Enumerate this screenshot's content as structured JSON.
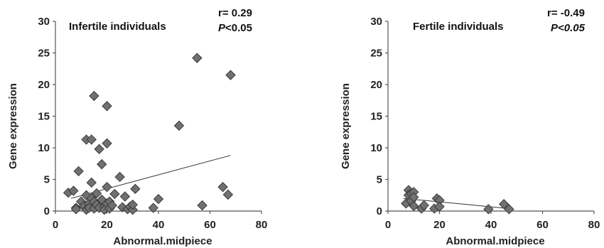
{
  "chart_data": [
    {
      "type": "scatter",
      "label": "Infertile individuals",
      "stat_r": "r= 0.29",
      "stat_p_prefix": "P",
      "stat_p_suffix": "<0.05",
      "stat_p_suffix_italic": false,
      "xlabel": "Abnormal.midpiece",
      "ylabel": "Gene expression",
      "xlim": [
        0,
        80
      ],
      "ylim": [
        0,
        30
      ],
      "xticks": [
        "0",
        "20",
        "40",
        "60",
        "80"
      ],
      "yticks": [
        "0",
        "5",
        "10",
        "15",
        "20",
        "25",
        "30"
      ],
      "trendline": [
        [
          6,
          2.0
        ],
        [
          68,
          8.8
        ]
      ],
      "points": [
        [
          5,
          2.9
        ],
        [
          7,
          3.2
        ],
        [
          8,
          0.5
        ],
        [
          8,
          0.3
        ],
        [
          9,
          6.3
        ],
        [
          10,
          1.5
        ],
        [
          11,
          0.8
        ],
        [
          12,
          11.3
        ],
        [
          12,
          2.5
        ],
        [
          12,
          0.2
        ],
        [
          13,
          1.2
        ],
        [
          13,
          0.5
        ],
        [
          14,
          11.3
        ],
        [
          14,
          4.5
        ],
        [
          14,
          2.0
        ],
        [
          15,
          18.2
        ],
        [
          15,
          1.5
        ],
        [
          15,
          0.4
        ],
        [
          16,
          2.8
        ],
        [
          16,
          1.0
        ],
        [
          17,
          9.8
        ],
        [
          17,
          0.5
        ],
        [
          18,
          7.4
        ],
        [
          18,
          1.8
        ],
        [
          19,
          0.7
        ],
        [
          19,
          0.2
        ],
        [
          20,
          16.6
        ],
        [
          20,
          10.7
        ],
        [
          20,
          3.8
        ],
        [
          20,
          1.2
        ],
        [
          21,
          1.5
        ],
        [
          21,
          0.4
        ],
        [
          22,
          0.9
        ],
        [
          23,
          2.7
        ],
        [
          25,
          5.4
        ],
        [
          26,
          0.6
        ],
        [
          27,
          2.3
        ],
        [
          28,
          0.3
        ],
        [
          29,
          0.7
        ],
        [
          30,
          0.2
        ],
        [
          30,
          1.0
        ],
        [
          31,
          3.5
        ],
        [
          38,
          0.5
        ],
        [
          40,
          1.9
        ],
        [
          48,
          13.5
        ],
        [
          55,
          24.2
        ],
        [
          57,
          0.9
        ],
        [
          65,
          3.8
        ],
        [
          67,
          2.6
        ],
        [
          68,
          21.5
        ]
      ]
    },
    {
      "type": "scatter",
      "label": "Fertile individuals",
      "stat_r": "r= -0.49",
      "stat_p_prefix": "P",
      "stat_p_suffix": "<0.05",
      "stat_p_suffix_italic": true,
      "xlabel": "Abnormal.midpiece",
      "ylabel": "Gene expression",
      "xlim": [
        0,
        80
      ],
      "ylim": [
        0,
        30
      ],
      "xticks": [
        "0",
        "20",
        "40",
        "60",
        "80"
      ],
      "yticks": [
        "0",
        "5",
        "10",
        "15",
        "20",
        "25",
        "30"
      ],
      "trendline": [
        [
          6,
          2.0
        ],
        [
          47,
          0.4
        ]
      ],
      "points": [
        [
          7,
          1.2
        ],
        [
          8,
          3.3
        ],
        [
          8,
          2.5
        ],
        [
          9,
          2.8
        ],
        [
          9,
          1.6
        ],
        [
          10,
          3.0
        ],
        [
          10,
          2.2
        ],
        [
          10,
          0.8
        ],
        [
          13,
          0.4
        ],
        [
          14,
          0.9
        ],
        [
          18,
          0.4
        ],
        [
          19,
          2.0
        ],
        [
          20,
          1.7
        ],
        [
          20,
          0.7
        ],
        [
          39,
          0.3
        ],
        [
          45,
          1.1
        ],
        [
          47,
          0.3
        ]
      ]
    }
  ]
}
